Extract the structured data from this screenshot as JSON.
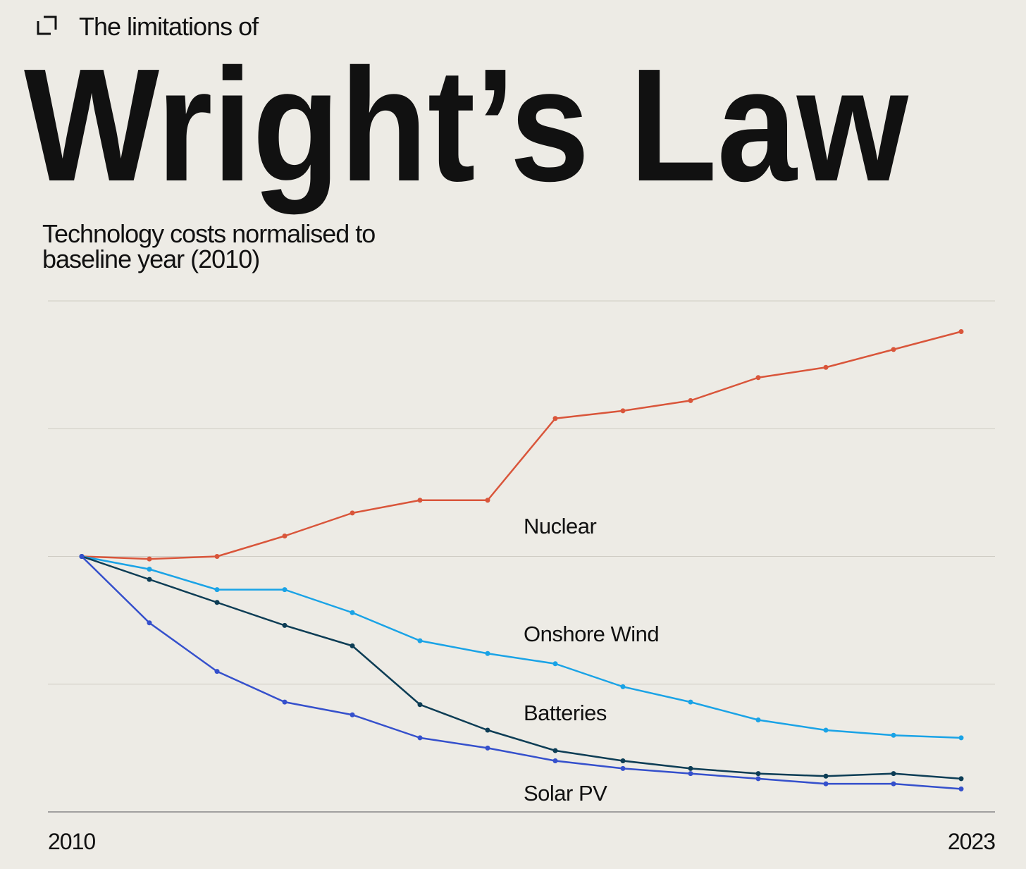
{
  "chart_data": {
    "type": "line",
    "kicker": "The limitations of",
    "title": "Wright’s Law",
    "subtitle": "Technology costs normalised to baseline year (2010)",
    "x": [
      2010,
      2011,
      2012,
      2013,
      2014,
      2015,
      2016,
      2017,
      2018,
      2019,
      2020,
      2021,
      2022,
      2023
    ],
    "xlim": [
      2009.5,
      2023.5
    ],
    "xticks": [
      2010,
      2023
    ],
    "ylim": [
      0,
      2
    ],
    "yticks": [
      0,
      0.5,
      1,
      1.5,
      2
    ],
    "grid": true,
    "series": [
      {
        "name": "Nuclear",
        "color": "#d9553a",
        "values": [
          1.0,
          0.99,
          1.0,
          1.08,
          1.17,
          1.22,
          1.22,
          1.54,
          1.57,
          1.61,
          1.7,
          1.74,
          1.81,
          1.88
        ]
      },
      {
        "name": "Onshore Wind",
        "color": "#1aa3e6",
        "values": [
          1.0,
          0.95,
          0.87,
          0.87,
          0.78,
          0.67,
          0.62,
          0.58,
          0.49,
          0.43,
          0.36,
          0.32,
          0.3,
          0.29
        ]
      },
      {
        "name": "Batteries",
        "color": "#0d3d55",
        "values": [
          1.0,
          0.91,
          0.82,
          0.73,
          0.65,
          0.42,
          0.32,
          0.24,
          0.2,
          0.17,
          0.15,
          0.14,
          0.15,
          0.13
        ]
      },
      {
        "name": "Solar PV",
        "color": "#3550cc",
        "values": [
          1.0,
          0.74,
          0.55,
          0.43,
          0.38,
          0.29,
          0.25,
          0.2,
          0.17,
          0.15,
          0.13,
          0.11,
          0.11,
          0.09
        ]
      }
    ]
  }
}
